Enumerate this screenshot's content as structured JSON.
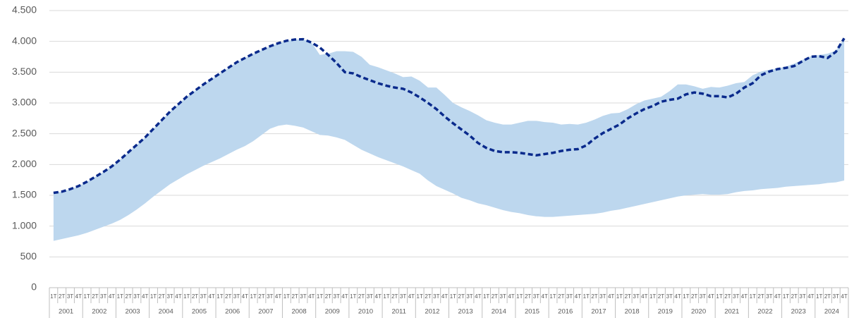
{
  "chart_data": {
    "type": "band-line",
    "categories": [
      "1T",
      "2T",
      "3T",
      "4T",
      "1T",
      "2T",
      "3T",
      "4T",
      "1T",
      "2T",
      "3T",
      "4T",
      "1T",
      "2T",
      "3T",
      "4T",
      "1T",
      "2T",
      "3T",
      "4T",
      "1T",
      "2T",
      "3T",
      "4T",
      "1T",
      "2T",
      "3T",
      "4T",
      "1T",
      "2T",
      "3T",
      "4T",
      "1T",
      "2T",
      "3T",
      "4T",
      "1T",
      "2T",
      "3T",
      "4T",
      "1T",
      "2T",
      "3T",
      "4T",
      "1T",
      "2T",
      "3T",
      "4T",
      "1T",
      "2T",
      "3T",
      "4T",
      "1T",
      "2T",
      "3T",
      "4T",
      "1T",
      "2T",
      "3T",
      "4T",
      "1T",
      "2T",
      "3T",
      "4T",
      "1T",
      "2T",
      "3T",
      "4T",
      "1T",
      "2T",
      "3T",
      "4T",
      "1T",
      "2T",
      "3T",
      "4T",
      "1T",
      "2T",
      "3T",
      "4T",
      "1T",
      "2T",
      "3T",
      "4T",
      "1T",
      "2T",
      "3T",
      "4T",
      "1T",
      "2T",
      "3T",
      "4T",
      "1T",
      "2T",
      "3T",
      "4T"
    ],
    "category_groups": [
      "2001",
      "2002",
      "2003",
      "2004",
      "2005",
      "2006",
      "2007",
      "2008",
      "2009",
      "2010",
      "2011",
      "2012",
      "2013",
      "2014",
      "2015",
      "2016",
      "2017",
      "2018",
      "2019",
      "2020",
      "2021",
      "2022",
      "2023",
      "2024"
    ],
    "series": [
      {
        "type": "band",
        "color": "#bdd7ee",
        "values": [
          1540,
          1560,
          1600,
          1650,
          1720,
          1800,
          1880,
          1970,
          2080,
          2200,
          2320,
          2440,
          2580,
          2720,
          2860,
          2980,
          3100,
          3200,
          3300,
          3390,
          3480,
          3570,
          3660,
          3730,
          3800,
          3860,
          3920,
          3970,
          4010,
          4030,
          4035,
          3980,
          3780,
          3800,
          3840,
          3840,
          3830,
          3750,
          3620,
          3580,
          3530,
          3480,
          3420,
          3430,
          3360,
          3250,
          3250,
          3130,
          3000,
          2930,
          2870,
          2800,
          2720,
          2680,
          2650,
          2650,
          2680,
          2710,
          2710,
          2690,
          2680,
          2650,
          2660,
          2650,
          2680,
          2730,
          2790,
          2830,
          2840,
          2900,
          2980,
          3040,
          3070,
          3100,
          3190,
          3300,
          3300,
          3270,
          3230,
          3260,
          3250,
          3280,
          3320,
          3340,
          3450,
          3510,
          3540,
          3560,
          3590,
          3640,
          3700,
          3760,
          3780,
          3800,
          3850,
          4050
        ],
        "base": [
          760,
          790,
          820,
          850,
          890,
          940,
          990,
          1040,
          1100,
          1180,
          1270,
          1370,
          1480,
          1580,
          1680,
          1760,
          1840,
          1910,
          1980,
          2040,
          2100,
          2170,
          2240,
          2300,
          2380,
          2480,
          2580,
          2630,
          2650,
          2630,
          2600,
          2540,
          2480,
          2470,
          2440,
          2400,
          2320,
          2240,
          2180,
          2120,
          2070,
          2020,
          1970,
          1910,
          1850,
          1740,
          1650,
          1590,
          1530,
          1460,
          1420,
          1370,
          1340,
          1300,
          1260,
          1230,
          1210,
          1180,
          1160,
          1150,
          1150,
          1160,
          1170,
          1180,
          1190,
          1200,
          1220,
          1250,
          1270,
          1300,
          1330,
          1360,
          1390,
          1420,
          1450,
          1480,
          1500,
          1510,
          1520,
          1510,
          1510,
          1520,
          1550,
          1570,
          1580,
          1600,
          1610,
          1620,
          1640,
          1650,
          1660,
          1670,
          1680,
          1700,
          1710,
          1740
        ]
      },
      {
        "type": "line",
        "color": "#0a2a8c",
        "dashed": true,
        "values": [
          1540,
          1560,
          1600,
          1650,
          1720,
          1800,
          1880,
          1970,
          2080,
          2200,
          2320,
          2440,
          2580,
          2720,
          2860,
          2980,
          3100,
          3200,
          3300,
          3390,
          3480,
          3570,
          3660,
          3730,
          3800,
          3860,
          3920,
          3970,
          4010,
          4030,
          4035,
          3980,
          3900,
          3780,
          3650,
          3500,
          3480,
          3420,
          3370,
          3320,
          3280,
          3250,
          3230,
          3170,
          3090,
          3000,
          2900,
          2780,
          2670,
          2570,
          2470,
          2350,
          2270,
          2220,
          2200,
          2200,
          2190,
          2170,
          2150,
          2170,
          2190,
          2220,
          2240,
          2250,
          2310,
          2420,
          2510,
          2580,
          2650,
          2750,
          2830,
          2900,
          2950,
          3020,
          3050,
          3070,
          3140,
          3170,
          3150,
          3110,
          3110,
          3090,
          3150,
          3250,
          3320,
          3450,
          3510,
          3550,
          3570,
          3600,
          3680,
          3750,
          3760,
          3730,
          3830,
          4050
        ]
      }
    ],
    "ylim": [
      0,
      4500
    ],
    "yticks": [
      0,
      500,
      {
        "value": 1000,
        "label": "1.000"
      },
      {
        "value": 1500,
        "label": "1.500"
      },
      {
        "value": 2000,
        "label": "2.000"
      },
      {
        "value": 2500,
        "label": "2.500"
      },
      {
        "value": 3000,
        "label": "3.000"
      },
      {
        "value": 3500,
        "label": "3.500"
      },
      {
        "value": 4000,
        "label": "4.000"
      },
      {
        "value": 4500,
        "label": "4.500"
      }
    ],
    "grid": true
  }
}
